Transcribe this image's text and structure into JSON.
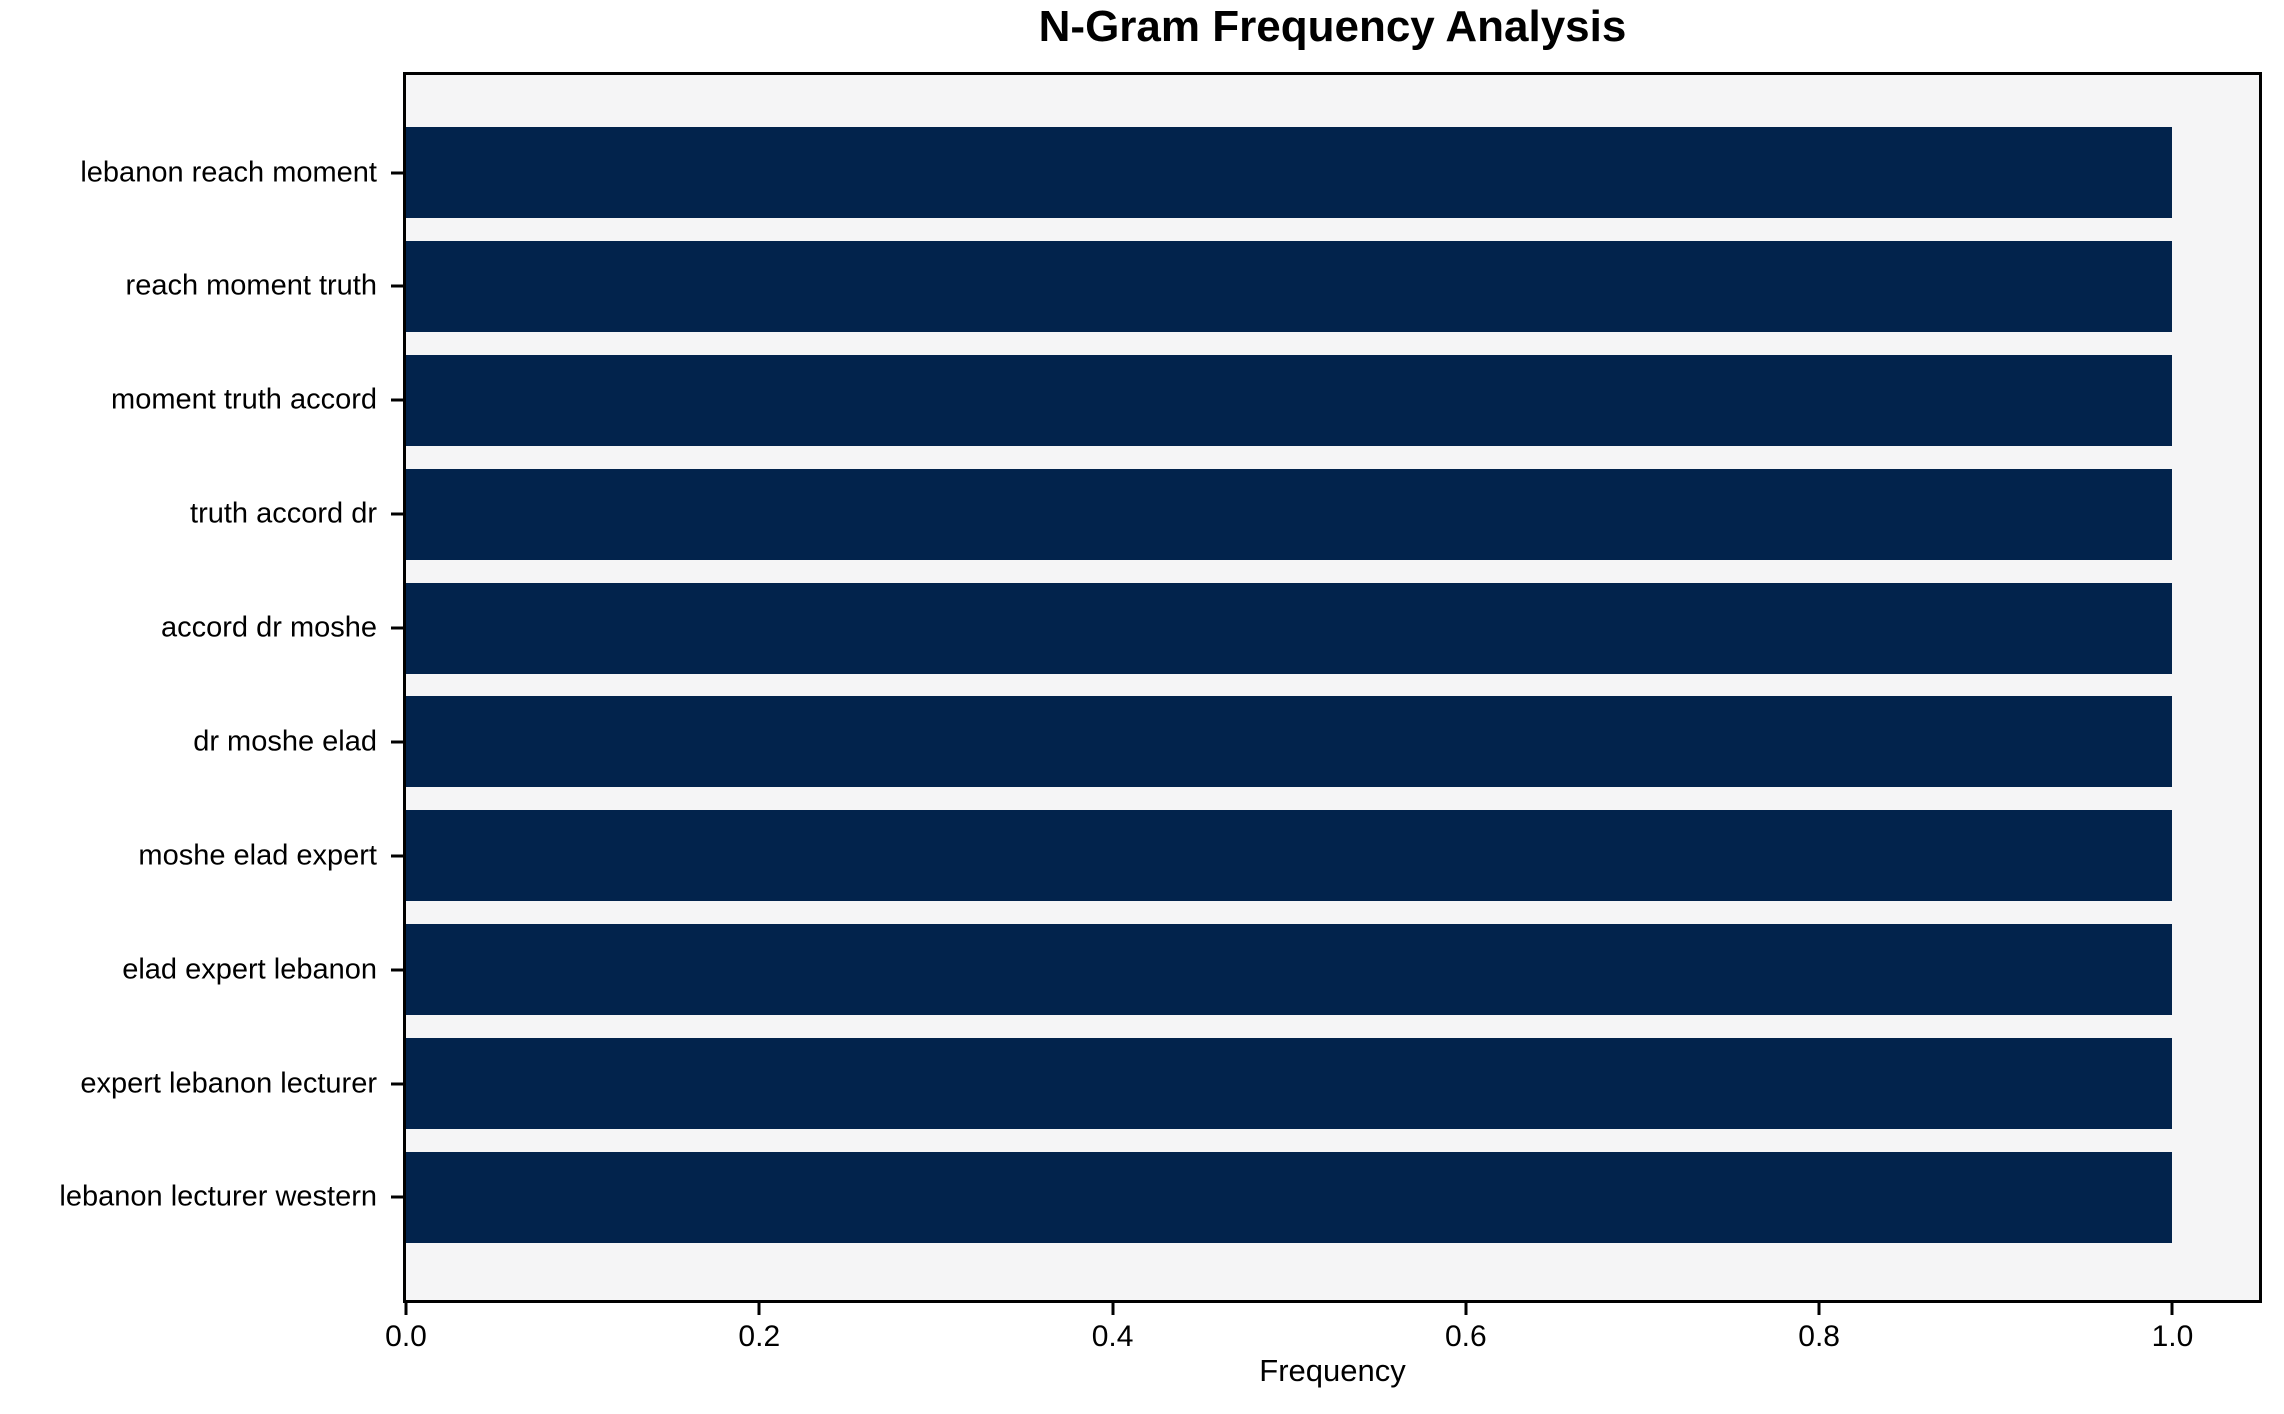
{
  "chart_data": {
    "type": "bar",
    "orientation": "horizontal",
    "title": "N-Gram Frequency Analysis",
    "xlabel": "Frequency",
    "ylabel": "",
    "categories": [
      "lebanon reach moment",
      "reach moment truth",
      "moment truth accord",
      "truth accord dr",
      "accord dr moshe",
      "dr moshe elad",
      "moshe elad expert",
      "elad expert lebanon",
      "expert lebanon lecturer",
      "lebanon lecturer western"
    ],
    "values": [
      1.0,
      1.0,
      1.0,
      1.0,
      1.0,
      1.0,
      1.0,
      1.0,
      1.0,
      1.0
    ],
    "xlim": [
      0.0,
      1.049
    ],
    "xtick_labels": [
      "0.0",
      "0.2",
      "0.4",
      "0.6",
      "0.8",
      "1.0"
    ],
    "xtick_values": [
      0.0,
      0.2,
      0.4,
      0.6,
      0.8,
      1.0
    ],
    "grid": false,
    "legend_position": "none",
    "colors": {
      "bar": "#02234c",
      "plot_background": "#f5f5f6",
      "figure_background": "#ffffff",
      "axis": "#000000",
      "text": "#000000"
    }
  }
}
